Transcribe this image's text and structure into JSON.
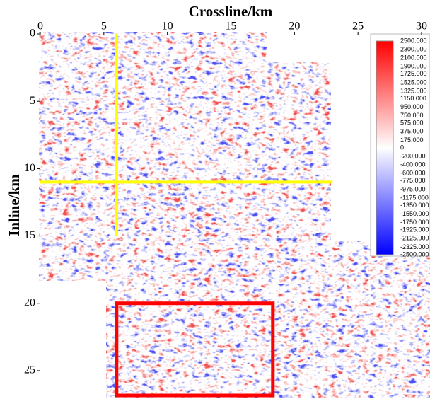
{
  "chart_data": {
    "type": "heatmap",
    "xlabel": "Crossline/km",
    "ylabel": "Inline/km",
    "xlim": [
      0,
      30
    ],
    "ylim": [
      0,
      27
    ],
    "xticks": [
      0,
      5,
      10,
      15,
      20,
      25,
      30
    ],
    "yticks": [
      0,
      5,
      10,
      15,
      20,
      25
    ],
    "colorbar": {
      "lim": [
        -2500,
        2500
      ],
      "colors": [
        "#0000ff",
        "#ffffff",
        "#ff0000"
      ],
      "ticks": [
        {
          "value": 2500,
          "label": "2500.000"
        },
        {
          "value": 2300,
          "label": "2300.000"
        },
        {
          "value": 2100,
          "label": "2100.000"
        },
        {
          "value": 1900,
          "label": "1900.000"
        },
        {
          "value": 1725,
          "label": "1725.000"
        },
        {
          "value": 1525,
          "label": "1525.000"
        },
        {
          "value": 1325,
          "label": "1325.000"
        },
        {
          "value": 1150,
          "label": "1150.000"
        },
        {
          "value": 950,
          "label": "950.000"
        },
        {
          "value": 750,
          "label": "750.000"
        },
        {
          "value": 575,
          "label": "575.000"
        },
        {
          "value": 375,
          "label": "375.000"
        },
        {
          "value": 175,
          "label": "175.000"
        },
        0,
        {
          "value": -200,
          "label": "-200.000"
        },
        {
          "value": -400,
          "label": "-400.000"
        },
        {
          "value": -600,
          "label": "-600.000"
        },
        {
          "value": -775,
          "label": "-775.000"
        },
        {
          "value": -975,
          "label": "-975.000"
        },
        {
          "value": -1175,
          "label": "-1175.000"
        },
        {
          "value": -1350,
          "label": "-1350.000"
        },
        {
          "value": -1550,
          "label": "-1550.000"
        },
        {
          "value": -1750,
          "label": "-1750.000"
        },
        {
          "value": -1925,
          "label": "-1925.000"
        },
        {
          "value": -2125,
          "label": "-2125.000"
        },
        {
          "value": -2325,
          "label": "-2325.000"
        },
        {
          "value": -2500,
          "label": "-2500.000"
        }
      ]
    },
    "lines": {
      "color": "#ffff00",
      "items": [
        {
          "x": [
            6,
            6
          ],
          "y": [
            0,
            15
          ]
        },
        {
          "x": [
            0,
            23
          ],
          "y": [
            11,
            11
          ]
        }
      ]
    },
    "box": {
      "color": "#ff0000",
      "x": [
        6,
        18.3
      ],
      "y": [
        20,
        27
      ]
    }
  }
}
